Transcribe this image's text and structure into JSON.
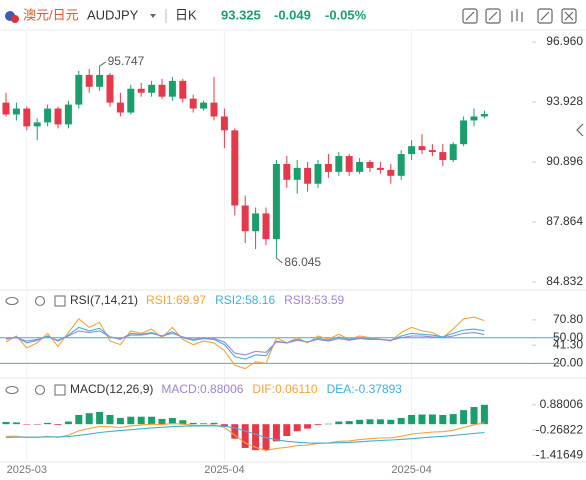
{
  "header": {
    "pair": "澳元/日元",
    "symbol": "AUDJPY",
    "period": "日K",
    "price": "93.325",
    "change": "-0.049",
    "change_pct": "-0.05%"
  },
  "chart_data": [
    {
      "type": "candlestick",
      "categories": [
        null,
        null,
        "2025-03",
        null,
        null,
        null,
        null,
        null,
        null,
        null,
        null,
        null,
        null,
        null,
        null,
        null,
        null,
        null,
        null,
        null,
        null,
        "2025-04",
        null,
        null,
        null,
        null,
        null,
        null,
        null,
        null,
        null,
        null,
        null,
        null,
        null,
        null,
        null,
        null,
        null,
        "2025-04",
        null,
        null,
        null,
        null,
        null,
        null,
        null
      ],
      "open": [
        93.9,
        93.3,
        93.6,
        92.7,
        92.9,
        93.6,
        92.8,
        93.8,
        95.3,
        94.7,
        95.3,
        93.9,
        93.4,
        94.6,
        94.4,
        94.8,
        94.2,
        95.0,
        94.1,
        93.6,
        93.9,
        93.2,
        92.5,
        88.7,
        87.4,
        88.3,
        87.0,
        90.8,
        90.0,
        90.6,
        89.8,
        90.8,
        90.4,
        91.2,
        90.4,
        90.9,
        90.6,
        90.5,
        90.2,
        91.3,
        91.7,
        91.5,
        91.4,
        91.0,
        91.8,
        93.0,
        93.2
      ],
      "high": [
        94.4,
        93.9,
        93.7,
        93.1,
        93.8,
        93.7,
        94.0,
        95.5,
        95.6,
        95.747,
        95.4,
        94.4,
        94.8,
        94.9,
        95.0,
        95.1,
        95.2,
        95.1,
        94.3,
        94.0,
        95.2,
        93.6,
        92.6,
        89.2,
        88.6,
        88.6,
        91.0,
        91.2,
        91.0,
        90.9,
        91.0,
        91.3,
        91.4,
        91.3,
        91.1,
        91.0,
        90.9,
        90.8,
        91.5,
        92.0,
        92.3,
        91.8,
        91.8,
        91.9,
        93.2,
        93.6,
        93.5
      ],
      "low": [
        93.2,
        93.0,
        92.5,
        92.0,
        92.7,
        92.6,
        92.6,
        93.6,
        94.4,
        94.5,
        93.7,
        93.2,
        93.3,
        94.2,
        94.2,
        94.1,
        94.0,
        93.9,
        93.4,
        93.5,
        93.0,
        91.6,
        88.2,
        86.8,
        86.5,
        86.7,
        86.045,
        89.6,
        89.3,
        89.4,
        89.6,
        90.1,
        90.2,
        90.2,
        90.3,
        90.4,
        90.3,
        89.8,
        90.0,
        91.0,
        91.3,
        91.2,
        90.7,
        90.9,
        91.7,
        92.7,
        93.1
      ],
      "close": [
        93.3,
        93.6,
        92.7,
        92.9,
        93.6,
        92.8,
        93.8,
        95.3,
        94.7,
        95.3,
        93.9,
        93.4,
        94.6,
        94.4,
        94.8,
        94.2,
        95.0,
        94.1,
        93.6,
        93.9,
        93.2,
        92.5,
        88.7,
        87.4,
        88.3,
        87.0,
        90.8,
        90.0,
        90.6,
        89.8,
        90.8,
        90.4,
        91.2,
        90.4,
        90.9,
        90.6,
        90.5,
        90.2,
        91.3,
        91.7,
        91.5,
        91.4,
        91.0,
        91.8,
        93.0,
        93.2,
        93.325
      ],
      "up_color": "#1a9f6c",
      "down_color": "#e5394b",
      "ylim": [
        84.43,
        97.57
      ],
      "yticks": [
        {
          "value": 96.96,
          "label": "96.960"
        },
        93.928,
        90.896,
        87.864,
        84.832
      ],
      "annotations": [
        {
          "value": 95.747,
          "label": "95.747"
        },
        {
          "value": 86.045,
          "label": "86.045"
        }
      ]
    },
    {
      "type": "line",
      "title": "RSI(7,14,21)",
      "series": [
        {
          "name": "RSI1:69.97",
          "color": "#f5a23c",
          "values": [
            45,
            52,
            38,
            44,
            55,
            40,
            56,
            72,
            62,
            68,
            46,
            42,
            58,
            55,
            60,
            50,
            62,
            48,
            42,
            46,
            44,
            35,
            18,
            14,
            22,
            20,
            50,
            44,
            50,
            44,
            52,
            48,
            54,
            48,
            52,
            50,
            48,
            46,
            56,
            62,
            58,
            56,
            50,
            60,
            72,
            74,
            69.97
          ]
        },
        {
          "name": "RSI2:58.16",
          "color": "#3fb0dc",
          "values": [
            48,
            51,
            44,
            47,
            52,
            46,
            53,
            62,
            58,
            61,
            51,
            48,
            55,
            54,
            56,
            52,
            57,
            50,
            47,
            49,
            48,
            42,
            28,
            25,
            30,
            29,
            46,
            44,
            48,
            45,
            49,
            47,
            51,
            48,
            50,
            49,
            48,
            47,
            52,
            55,
            54,
            53,
            51,
            55,
            59,
            60,
            58.16
          ]
        },
        {
          "name": "RSI3:53.59",
          "color": "#9f86d8",
          "values": [
            49,
            50,
            46,
            48,
            51,
            47,
            52,
            58,
            56,
            58,
            51,
            49,
            53,
            53,
            55,
            52,
            55,
            51,
            48,
            50,
            49,
            45,
            32,
            30,
            34,
            33,
            45,
            44,
            47,
            45,
            48,
            46,
            49,
            47,
            49,
            48,
            48,
            47,
            50,
            52,
            52,
            51,
            50,
            52,
            55,
            56,
            53.59
          ]
        }
      ],
      "ylim": [
        10,
        80
      ],
      "yticks": [
        {
          "value": 70.8,
          "label": "70.80"
        },
        {
          "value": 50,
          "label": "50.00"
        },
        {
          "value": 41.3,
          "label": "41.30"
        },
        {
          "value": 20,
          "label": "20.00"
        }
      ],
      "ref_lines": [
        50,
        20
      ],
      "ref_color": "#2bb5d8"
    },
    {
      "type": "combo",
      "title": "MACD(12,26,9)",
      "series": [
        {
          "name": "MACD:0.88006",
          "kind": "bar",
          "color": "#9c84d4",
          "values": [
            0.1,
            0.08,
            -0.02,
            -0.02,
            0.06,
            -0.04,
            0.12,
            0.42,
            0.5,
            0.56,
            0.42,
            0.28,
            0.34,
            0.34,
            0.34,
            0.24,
            0.28,
            0.18,
            0.06,
            0.04,
            0.06,
            -0.12,
            -0.66,
            -1.08,
            -1.18,
            -1.18,
            -0.78,
            -0.54,
            -0.32,
            -0.2,
            -0.04,
            0.02,
            0.12,
            0.14,
            0.2,
            0.22,
            0.22,
            0.2,
            0.28,
            0.42,
            0.44,
            0.44,
            0.42,
            0.46,
            0.64,
            0.78,
            0.88006
          ]
        },
        {
          "name": "DIF:0.06110",
          "kind": "line",
          "color": "#f5a23c",
          "values": [
            -0.55,
            -0.55,
            -0.6,
            -0.6,
            -0.55,
            -0.6,
            -0.5,
            -0.3,
            -0.2,
            -0.1,
            -0.12,
            -0.15,
            -0.08,
            -0.04,
            0.0,
            -0.02,
            0.03,
            0.0,
            -0.05,
            -0.06,
            -0.04,
            -0.15,
            -0.5,
            -0.85,
            -1.05,
            -1.2,
            -1.1,
            -1.05,
            -0.98,
            -0.95,
            -0.88,
            -0.85,
            -0.78,
            -0.76,
            -0.7,
            -0.66,
            -0.63,
            -0.62,
            -0.55,
            -0.45,
            -0.4,
            -0.36,
            -0.34,
            -0.28,
            -0.15,
            -0.03,
            0.0611
          ]
        },
        {
          "name": "DEA:-0.37893",
          "kind": "line",
          "color": "#3fb0dc",
          "values": [
            -0.6,
            -0.59,
            -0.59,
            -0.59,
            -0.58,
            -0.58,
            -0.56,
            -0.51,
            -0.45,
            -0.38,
            -0.33,
            -0.29,
            -0.25,
            -0.21,
            -0.17,
            -0.14,
            -0.11,
            -0.09,
            -0.08,
            -0.08,
            -0.07,
            -0.09,
            -0.17,
            -0.31,
            -0.46,
            -0.61,
            -0.71,
            -0.78,
            -0.82,
            -0.85,
            -0.86,
            -0.86,
            -0.84,
            -0.83,
            -0.8,
            -0.77,
            -0.74,
            -0.72,
            -0.69,
            -0.66,
            -0.62,
            -0.58,
            -0.55,
            -0.51,
            -0.47,
            -0.42,
            -0.37893
          ]
        }
      ],
      "pos_color": "#1a9f6c",
      "neg_color": "#e5394b",
      "ylim": [
        -1.72,
        1.1
      ],
      "yticks": [
        0.88006,
        -0.26822,
        -1.41649
      ]
    }
  ]
}
